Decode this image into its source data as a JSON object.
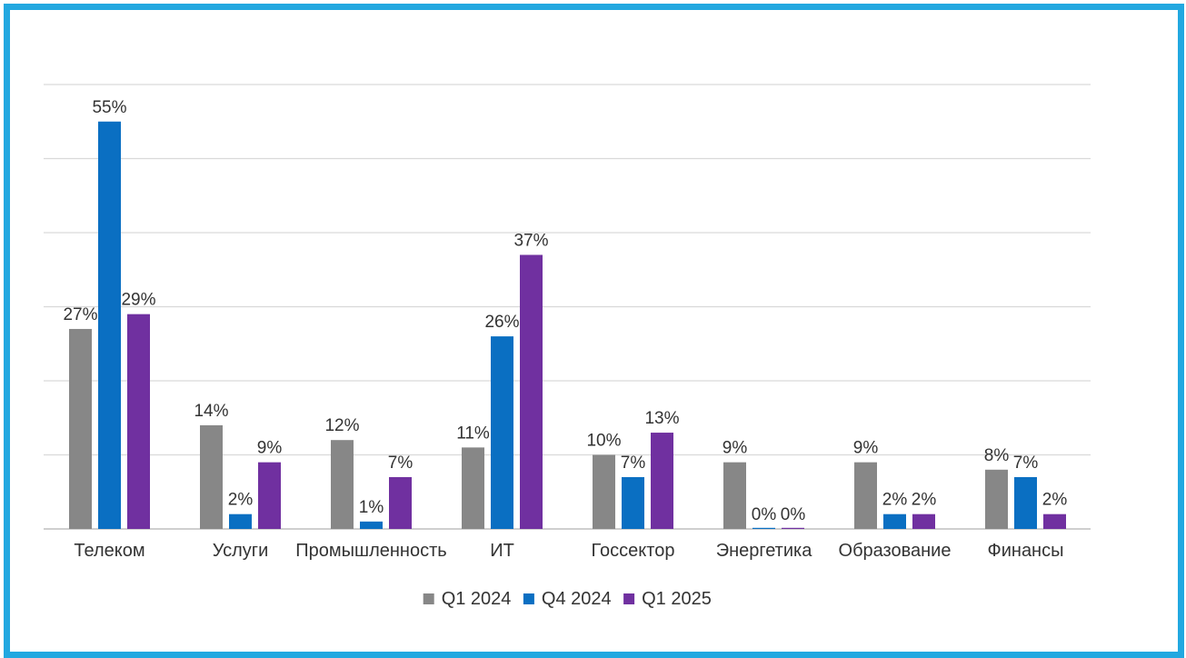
{
  "chart_data": {
    "type": "bar",
    "categories": [
      "Телеком",
      "Услуги",
      "Промышленность",
      "ИТ",
      "Госсектор",
      "Энергетика",
      "Образование",
      "Финансы"
    ],
    "series": [
      {
        "name": "Q1 2024",
        "color": "#878787",
        "values": [
          27,
          14,
          12,
          11,
          10,
          9,
          9,
          8
        ]
      },
      {
        "name": "Q4 2024",
        "color": "#0a6fc2",
        "values": [
          55,
          2,
          1,
          26,
          7,
          0,
          2,
          7
        ]
      },
      {
        "name": "Q1 2025",
        "color": "#7030a0",
        "values": [
          29,
          9,
          7,
          37,
          13,
          0,
          2,
          2
        ]
      }
    ],
    "value_suffix": "%",
    "ylim": [
      0,
      60
    ],
    "y_gridline_step": 10,
    "grid": true,
    "y_tick_labels_shown": false,
    "legend_position": "bottom-center"
  }
}
